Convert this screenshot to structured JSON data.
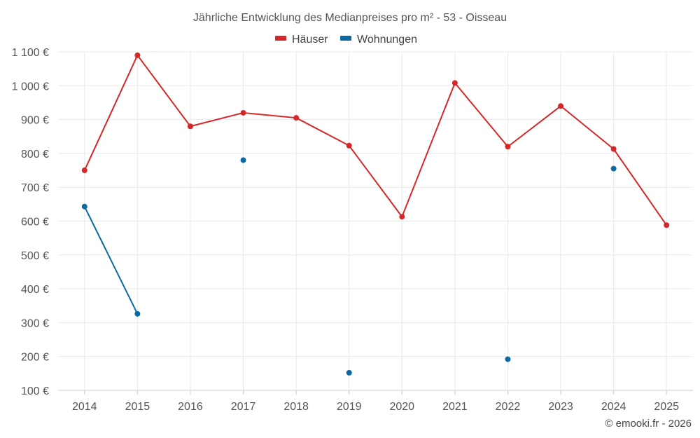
{
  "chart_data": {
    "type": "line",
    "title": "Jährliche Entwicklung des Medianpreises pro m² - 53 - Oisseau",
    "categories": [
      "2014",
      "2015",
      "2016",
      "2017",
      "2018",
      "2019",
      "2020",
      "2021",
      "2022",
      "2023",
      "2024",
      "2025"
    ],
    "ylim": [
      100,
      1100
    ],
    "yticks": [
      100,
      200,
      300,
      400,
      500,
      600,
      700,
      800,
      900,
      1000,
      1100
    ],
    "ytick_labels": [
      "100 €",
      "200 €",
      "300 €",
      "400 €",
      "500 €",
      "600 €",
      "700 €",
      "800 €",
      "900 €",
      "1 000 €",
      "1 100 €"
    ],
    "grid": true,
    "legend_position": "top-center",
    "series": [
      {
        "name": "Häuser",
        "color": "#d62728",
        "values": [
          750,
          1090,
          880,
          920,
          905,
          823,
          613,
          1008,
          820,
          940,
          813,
          588
        ]
      },
      {
        "name": "Wohnungen",
        "color": "#0a6aa1",
        "values": [
          643,
          326,
          null,
          780,
          null,
          152,
          null,
          null,
          192,
          null,
          755,
          null
        ]
      }
    ],
    "credit": "© emooki.fr - 2026"
  }
}
